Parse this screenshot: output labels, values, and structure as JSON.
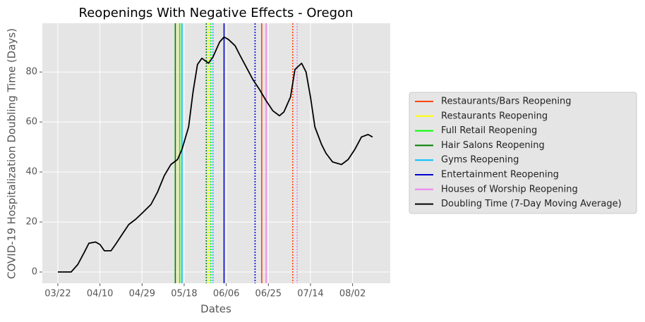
{
  "chart_data": {
    "type": "line",
    "title": "Reopenings With Negative Effects - Oregon",
    "x_label": "Dates",
    "y_label": "COVID-19 Hospitalization Doubling Time (Days)",
    "xlim": [
      "03/15",
      "08/19"
    ],
    "xticks": [
      "03/22",
      "04/10",
      "04/29",
      "05/18",
      "06/06",
      "06/25",
      "07/14",
      "08/02"
    ],
    "ylim": [
      -4.5,
      99.5
    ],
    "yticks": [
      0,
      20,
      40,
      60,
      80
    ],
    "grid": true,
    "legend": "right",
    "reopenings": [
      {
        "name": "Restaurants/Bars Reopening",
        "color": "#ff4500",
        "date": "06/22",
        "effect_date": "07/06"
      },
      {
        "name": "Restaurants Reopening",
        "color": "#ffff00",
        "date": "05/15",
        "effect_date": "05/29"
      },
      {
        "name": "Full Retail Reopening",
        "color": "#00ff00",
        "date": "05/16",
        "effect_date": "05/30"
      },
      {
        "name": "Hair Salons Reopening",
        "color": "#008000",
        "date": "05/14",
        "effect_date": "05/28"
      },
      {
        "name": "Gyms Reopening",
        "color": "#00bfff",
        "date": "05/17",
        "effect_date": "05/31"
      },
      {
        "name": "Entertainment Reopening",
        "color": "#0000cd",
        "date": "06/05",
        "effect_date": "06/19"
      },
      {
        "name": "Houses of Worship Reopening",
        "color": "#ee82ee",
        "date": "06/24",
        "effect_date": "07/08"
      }
    ],
    "series": [
      {
        "name": "Doubling Time (7-Day Moving Average)",
        "color": "#000000",
        "x": [
          "03/22",
          "03/26",
          "03/28",
          "03/31",
          "04/03",
          "04/05",
          "04/08",
          "04/10",
          "04/12",
          "04/15",
          "04/17",
          "04/20",
          "04/23",
          "04/26",
          "04/29",
          "05/03",
          "05/06",
          "05/09",
          "05/12",
          "05/15",
          "05/17",
          "05/20",
          "05/22",
          "05/24",
          "05/26",
          "05/29",
          "05/31",
          "06/03",
          "06/05",
          "06/07",
          "06/10",
          "06/12",
          "06/15",
          "06/18",
          "06/21",
          "06/24",
          "06/27",
          "06/30",
          "07/02",
          "07/05",
          "07/07",
          "07/10",
          "07/12",
          "07/14",
          "07/16",
          "07/19",
          "07/21",
          "07/24",
          "07/28",
          "07/31",
          "08/03",
          "08/06",
          "08/09",
          "08/11"
        ],
        "values": [
          0,
          0,
          0,
          3,
          8,
          11.5,
          12,
          11,
          8.5,
          8.5,
          11,
          15,
          19,
          21,
          23.5,
          27,
          32,
          38.5,
          43,
          45,
          49,
          58,
          72,
          83,
          85.5,
          83.5,
          86,
          92,
          94,
          93,
          90.5,
          87,
          82,
          77,
          73,
          68.5,
          64.5,
          62.5,
          64,
          70,
          81,
          83.5,
          80,
          70,
          58,
          51,
          47.5,
          44,
          43,
          45,
          49,
          54,
          55,
          54
        ]
      }
    ]
  }
}
